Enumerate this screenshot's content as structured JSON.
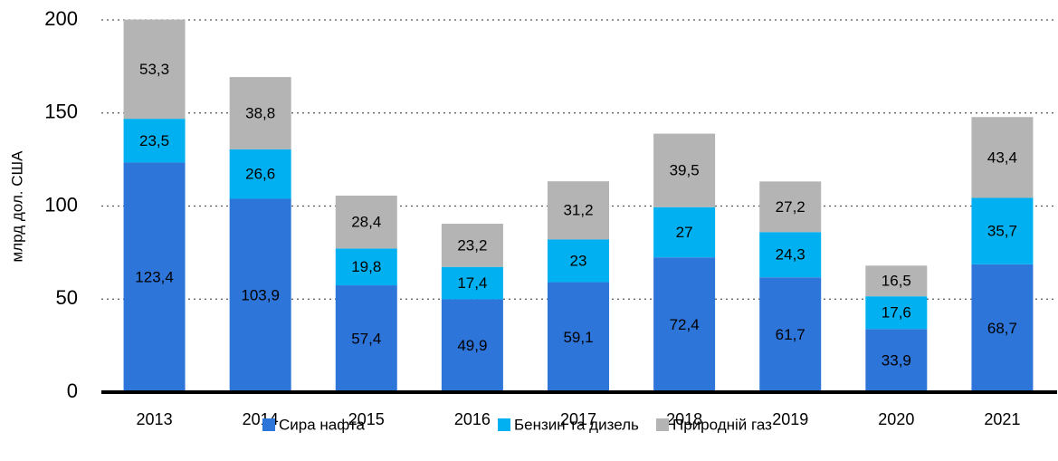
{
  "chart_data": {
    "type": "stacked_bar",
    "y_label": "млрд дол. США",
    "categories": [
      "2013",
      "2014",
      "2015",
      "2016",
      "2017",
      "2018",
      "2019",
      "2020",
      "2021"
    ],
    "series": [
      {
        "name": "Сира нафта",
        "color": "#2e75d9",
        "values": [
          123.4,
          103.9,
          57.4,
          49.9,
          59.1,
          72.4,
          61.7,
          33.9,
          68.7
        ],
        "value_labels": [
          "123,4",
          "103,9",
          "57,4",
          "49,9",
          "59,1",
          "72,4",
          "61,7",
          "33,9",
          "68,7"
        ]
      },
      {
        "name": "Бензин та дизель",
        "color": "#00b0f0",
        "values": [
          23.5,
          26.6,
          19.8,
          17.4,
          23,
          27,
          24.3,
          17.6,
          35.7
        ],
        "value_labels": [
          "23,5",
          "26,6",
          "19,8",
          "17,4",
          "23",
          "27",
          "24,3",
          "17,6",
          "35,7"
        ]
      },
      {
        "name": "Природній газ",
        "color": "#b4b4b4",
        "values": [
          53.3,
          38.8,
          28.4,
          23.2,
          31.2,
          39.5,
          27.2,
          16.5,
          43.4
        ],
        "value_labels": [
          "53,3",
          "38,8",
          "28,4",
          "23,2",
          "31,2",
          "39,5",
          "27,2",
          "16,5",
          "43,4"
        ]
      }
    ],
    "ylim": [
      0,
      200
    ],
    "yticks": [
      0,
      50,
      100,
      150,
      200
    ],
    "grid": true,
    "legend": "bottom"
  }
}
